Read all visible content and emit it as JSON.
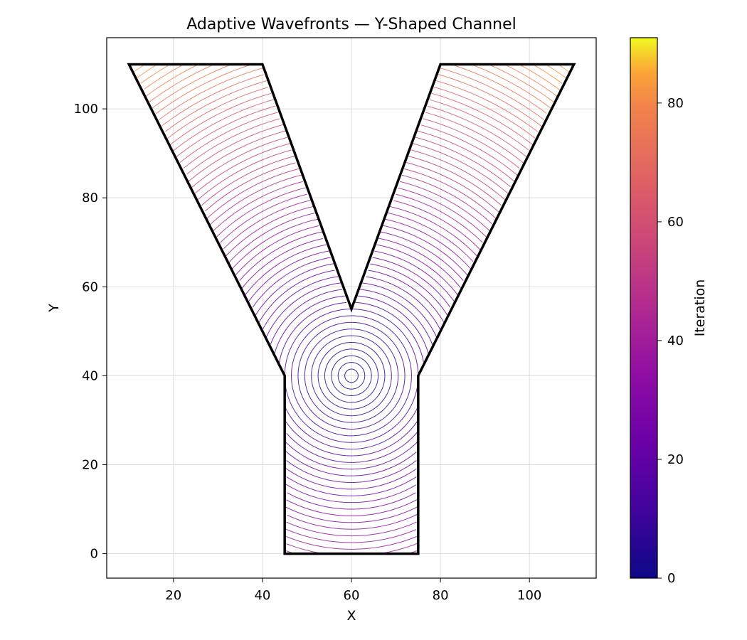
{
  "chart_data": {
    "type": "contour",
    "title": "Adaptive Wavefronts — Y-Shaped Channel",
    "xlabel": "X",
    "ylabel": "Y",
    "xlim": [
      5,
      115
    ],
    "ylim": [
      -5.5,
      116
    ],
    "x_ticks": [
      20,
      40,
      60,
      80,
      100
    ],
    "y_ticks": [
      0,
      20,
      40,
      60,
      80,
      100
    ],
    "grid": true,
    "colormap": "plasma",
    "colorbar": {
      "label": "Iteration",
      "range": [
        0,
        91
      ],
      "ticks": [
        0,
        20,
        40,
        60,
        80
      ]
    },
    "source_point": [
      60,
      40
    ],
    "wavefront_radius_step": 1.5,
    "wavefront_count": 61,
    "channel_outline": [
      [
        45,
        0
      ],
      [
        75,
        0
      ],
      [
        75,
        40
      ],
      [
        110,
        110
      ],
      [
        80,
        110
      ],
      [
        60,
        55
      ],
      [
        40,
        110
      ],
      [
        10,
        110
      ],
      [
        45,
        40
      ],
      [
        45,
        0
      ]
    ]
  }
}
